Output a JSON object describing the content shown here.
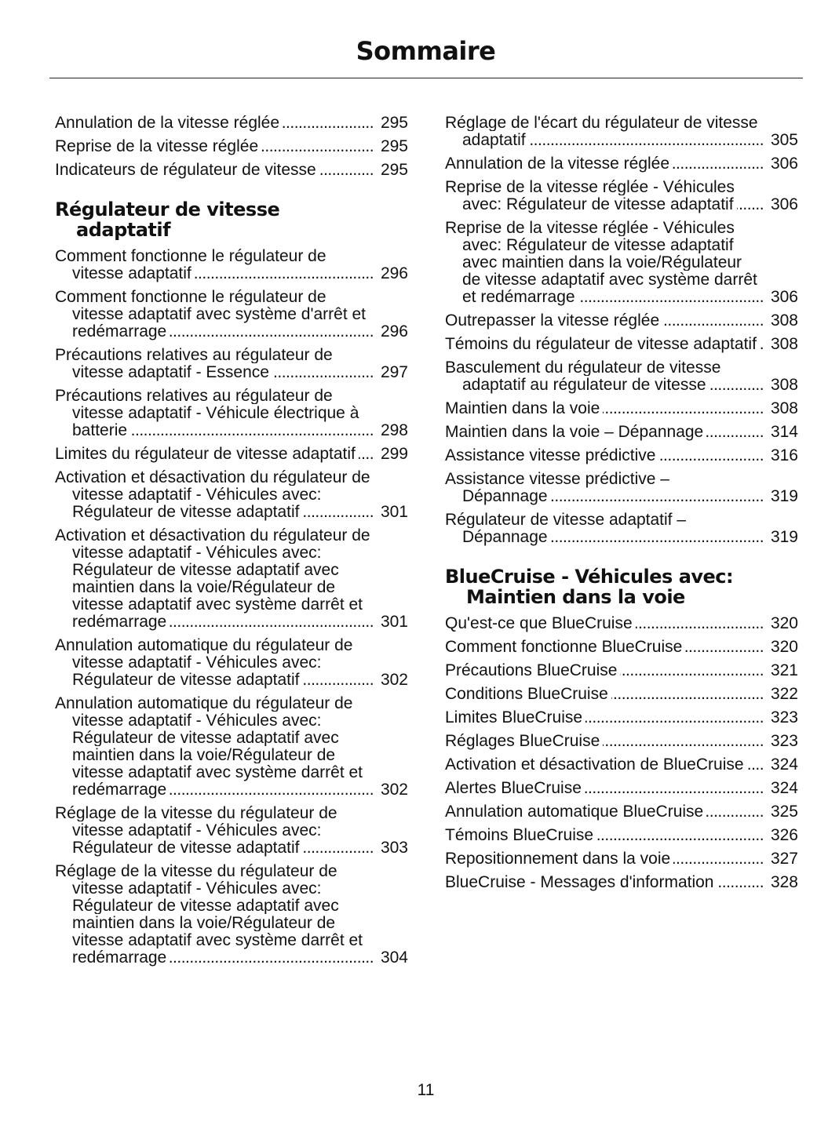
{
  "header": {
    "title": "Sommaire"
  },
  "columns": [
    {
      "items": [
        {
          "text": "Annulation de la vitesse réglée",
          "page": 295
        },
        {
          "text": "Reprise de la vitesse réglée",
          "page": 295
        },
        {
          "text": "Indicateurs de régulateur de vitesse",
          "page": 295
        },
        {
          "heading": "Régulateur de vitesse adaptatif"
        },
        {
          "text": "Comment fonctionne le régulateur de vitesse adaptatif",
          "page": 296
        },
        {
          "text": "Comment fonctionne le régulateur de vitesse adaptatif avec système d'arrêt et redémarrage",
          "page": 296
        },
        {
          "text": "Précautions relatives au régulateur de vitesse adaptatif - Essence",
          "page": 297
        },
        {
          "text": "Précautions relatives au régulateur de vitesse adaptatif - Véhicule électrique à batterie",
          "page": 298
        },
        {
          "text": "Limites du régulateur de vitesse adaptatif",
          "page": 299
        },
        {
          "text": "Activation et désactivation du régulateur de vitesse adaptatif - Véhicules avec: Régulateur de vitesse adaptatif",
          "page": 301
        },
        {
          "text": "Activation et désactivation du régulateur de vitesse adaptatif - Véhicules avec: Régulateur de vitesse adaptatif avec maintien dans la voie/Régulateur de vitesse adaptatif avec système darrêt et redémarrage",
          "page": 301
        },
        {
          "text": "Annulation automatique du régulateur de vitesse adaptatif - Véhicules avec: Régulateur de vitesse adaptatif",
          "page": 302
        },
        {
          "text": "Annulation automatique du régulateur de vitesse adaptatif - Véhicules avec: Régulateur de vitesse adaptatif avec maintien dans la voie/Régulateur de vitesse adaptatif avec système darrêt et redémarrage",
          "page": 302
        },
        {
          "text": "Réglage de la vitesse du régulateur de vitesse adaptatif - Véhicules avec: Régulateur de vitesse adaptatif",
          "page": 303
        },
        {
          "text": "Réglage de la vitesse du régulateur de vitesse adaptatif - Véhicules avec: Régulateur de vitesse adaptatif avec maintien dans la voie/Régulateur de vitesse adaptatif avec système darrêt et redémarrage",
          "page": 304
        }
      ]
    },
    {
      "items": [
        {
          "text": "Réglage de l'écart du régulateur de vitesse adaptatif",
          "page": 305
        },
        {
          "text": "Annulation de la vitesse réglée",
          "page": 306
        },
        {
          "text": "Reprise de la vitesse réglée - Véhicules avec: Régulateur de vitesse adaptatif",
          "page": 306
        },
        {
          "text": "Reprise de la vitesse réglée - Véhicules avec: Régulateur de vitesse adaptatif avec maintien dans la voie/Régulateur de vitesse adaptatif avec système darrêt et redémarrage",
          "page": 306
        },
        {
          "text": "Outrepasser la vitesse réglée",
          "page": 308
        },
        {
          "text": "Témoins du régulateur de vitesse adaptatif",
          "page": 308
        },
        {
          "text": "Basculement du régulateur de vitesse adaptatif au régulateur de vitesse",
          "page": 308
        },
        {
          "text": "Maintien dans la voie",
          "page": 308
        },
        {
          "text": "Maintien dans la voie – Dépannage",
          "page": 314
        },
        {
          "text": "Assistance vitesse prédictive",
          "page": 316
        },
        {
          "text": "Assistance vitesse prédictive – Dépannage",
          "page": 319
        },
        {
          "text": "Régulateur de vitesse adaptatif – Dépannage",
          "page": 319
        },
        {
          "heading": "BlueCruise - Véhicules avec: Maintien dans la voie"
        },
        {
          "text": "Qu'est-ce que BlueCruise",
          "page": 320
        },
        {
          "text": "Comment fonctionne BlueCruise",
          "page": 320
        },
        {
          "text": "Précautions BlueCruise",
          "page": 321
        },
        {
          "text": "Conditions BlueCruise",
          "page": 322
        },
        {
          "text": "Limites BlueCruise",
          "page": 323
        },
        {
          "text": "Réglages BlueCruise",
          "page": 323
        },
        {
          "text": "Activation et désactivation de BlueCruise",
          "page": 324
        },
        {
          "text": "Alertes BlueCruise",
          "page": 324
        },
        {
          "text": "Annulation automatique BlueCruise",
          "page": 325
        },
        {
          "text": "Témoins BlueCruise",
          "page": 326
        },
        {
          "text": "Repositionnement dans la voie",
          "page": 327
        },
        {
          "text": "BlueCruise - Messages d'information",
          "page": 328
        }
      ]
    }
  ],
  "footer": {
    "page_number": "11"
  }
}
